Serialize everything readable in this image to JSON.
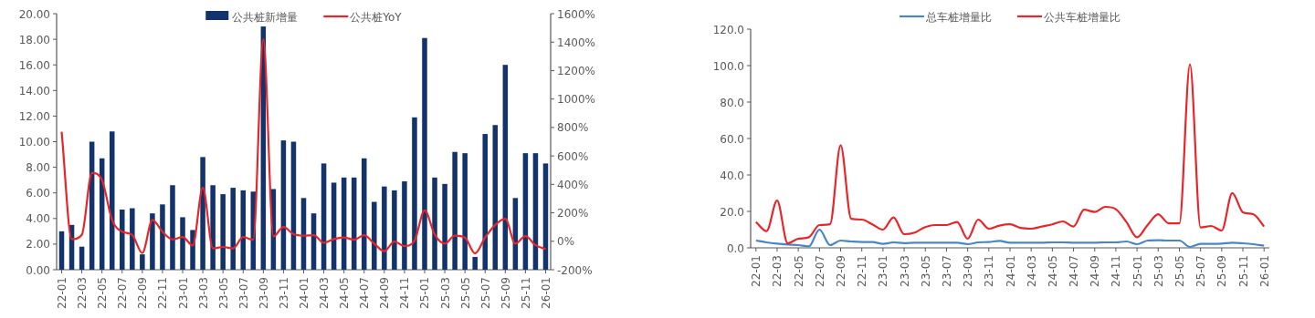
{
  "chart_data": [
    {
      "type": "bar",
      "categories": [
        "22-01",
        null,
        "22-03",
        null,
        "22-05",
        null,
        "22-07",
        null,
        "22-09",
        null,
        "22-11",
        null,
        "23-01",
        null,
        "23-03",
        null,
        "23-05",
        null,
        "23-07",
        null,
        "23-09",
        null,
        "23-11",
        null,
        "24-01",
        null,
        "24-03",
        null,
        "24-05",
        null,
        "24-07",
        null,
        "24-09",
        null,
        "24-11",
        null,
        "25-01",
        null,
        "25-03",
        null,
        "25-05",
        null,
        "25-07",
        null,
        "25-09",
        null,
        "25-11",
        null,
        "26-01"
      ],
      "series": [
        {
          "name": "公共桩新增量",
          "color": "#12336b",
          "values": [
            3.0,
            3.5,
            1.8,
            10.0,
            8.7,
            10.8,
            4.7,
            4.8,
            1.2,
            4.4,
            5.1,
            6.6,
            4.1,
            3.1,
            8.8,
            6.6,
            5.9,
            6.4,
            6.2,
            6.1,
            19.0,
            6.3,
            10.1,
            10.0,
            5.6,
            4.4,
            8.3,
            6.8,
            7.2,
            7.2,
            8.7,
            5.3,
            6.5,
            6.2,
            6.9,
            11.9,
            18.1,
            7.2,
            6.7,
            9.2,
            9.1,
            1.0,
            10.6,
            11.3,
            16.0,
            5.6,
            9.1,
            9.1,
            8.3
          ]
        },
        {
          "name": "公共桩YoY",
          "type": "line",
          "axis": "y2",
          "color": "#e8262a",
          "values": [
            770,
            15,
            45,
            480,
            430,
            150,
            67,
            45,
            -83,
            150,
            67,
            13,
            30,
            -30,
            377,
            -50,
            -40,
            -50,
            30,
            10,
            1420,
            35,
            100,
            50,
            40,
            43,
            -11,
            15,
            26,
            11,
            43,
            -17,
            -70,
            -2,
            -34,
            4,
            217,
            47,
            -17,
            40,
            26,
            -85,
            26,
            115,
            158,
            -17,
            36,
            -28,
            -55
          ]
        }
      ],
      "ylim": [
        0,
        20
      ],
      "yticks": [
        {
          "value": 0,
          "label": "0.00"
        },
        {
          "value": 2,
          "label": "2.00"
        },
        {
          "value": 4,
          "label": "4.00"
        },
        {
          "value": 6,
          "label": "6.00"
        },
        {
          "value": 8,
          "label": "8.00"
        },
        {
          "value": 10,
          "label": "10.00"
        },
        {
          "value": 12,
          "label": "12.00"
        },
        {
          "value": 14,
          "label": "14.00"
        },
        {
          "value": 16,
          "label": "16.00"
        },
        {
          "value": 18,
          "label": "18.00"
        },
        {
          "value": 20,
          "label": "20.00"
        }
      ],
      "y2lim": [
        -200,
        1600
      ],
      "y2ticks": [
        {
          "value": -200,
          "label": "-200%"
        },
        {
          "value": 0,
          "label": "0%"
        },
        {
          "value": 200,
          "label": "200%"
        },
        {
          "value": 400,
          "label": "400%"
        },
        {
          "value": 600,
          "label": "600%"
        },
        {
          "value": 800,
          "label": "800%"
        },
        {
          "value": 1000,
          "label": "1000%"
        },
        {
          "value": 1200,
          "label": "1200%"
        },
        {
          "value": 1400,
          "label": "1400%"
        },
        {
          "value": 1600,
          "label": "1600%"
        }
      ],
      "legend": "top",
      "grid": false,
      "marker": "none"
    },
    {
      "type": "line",
      "categories": [
        "22-01",
        null,
        "22-03",
        null,
        "22-05",
        null,
        "22-07",
        null,
        "22-09",
        null,
        "22-11",
        null,
        "23-01",
        null,
        "23-03",
        null,
        "23-05",
        null,
        "23-07",
        null,
        "23-09",
        null,
        "23-11",
        null,
        "24-01",
        null,
        "24-03",
        null,
        "24-05",
        null,
        "24-07",
        null,
        "24-09",
        null,
        "24-11",
        null,
        "25-01",
        null,
        "25-03",
        null,
        "25-05",
        null,
        "25-07",
        null,
        "25-09",
        null,
        "25-11",
        null,
        "26-01"
      ],
      "series": [
        {
          "name": "总车桩增量比",
          "color": "#4a86c5",
          "values": [
            4.0,
            3.0,
            2.3,
            1.8,
            1.5,
            0.8,
            10.0,
            1.5,
            4.0,
            3.5,
            3.2,
            3.2,
            2.2,
            3.0,
            2.6,
            2.8,
            2.8,
            2.8,
            2.8,
            2.8,
            2.0,
            3.0,
            3.2,
            3.8,
            2.8,
            2.8,
            2.8,
            2.8,
            3.0,
            3.0,
            2.8,
            2.8,
            2.8,
            3.0,
            3.0,
            3.5,
            2.0,
            4.0,
            4.2,
            4.0,
            4.0,
            0.5,
            2.2,
            2.2,
            2.3,
            2.8,
            2.5,
            2.0,
            1.2
          ]
        },
        {
          "name": "公共车桩增量比",
          "color": "#e8262a",
          "values": [
            14.2,
            9.2,
            25.9,
            2.5,
            5.0,
            5.8,
            12.5,
            12.9,
            56.3,
            15.9,
            15.5,
            12.9,
            10.0,
            16.7,
            7.5,
            8.4,
            11.4,
            12.5,
            12.5,
            14.2,
            5.0,
            15.5,
            10.5,
            12.2,
            12.9,
            10.9,
            10.5,
            11.7,
            12.9,
            14.5,
            11.7,
            20.9,
            19.7,
            22.5,
            21.2,
            14.2,
            5.8,
            12.5,
            18.4,
            13.4,
            13.4,
            100.7,
            11.2,
            12.0,
            9.5,
            30.1,
            19.5,
            18.4,
            11.7
          ]
        }
      ],
      "ylim": [
        0,
        120
      ],
      "yticks": [
        {
          "value": 0,
          "label": "0.0"
        },
        {
          "value": 20,
          "label": "20.0"
        },
        {
          "value": 40,
          "label": "40.0"
        },
        {
          "value": 60,
          "label": "60.0"
        },
        {
          "value": 80,
          "label": "80.0"
        },
        {
          "value": 100,
          "label": "100.0"
        },
        {
          "value": 120,
          "label": "120.0"
        }
      ],
      "legend": "top",
      "grid": false,
      "marker": "none"
    }
  ]
}
